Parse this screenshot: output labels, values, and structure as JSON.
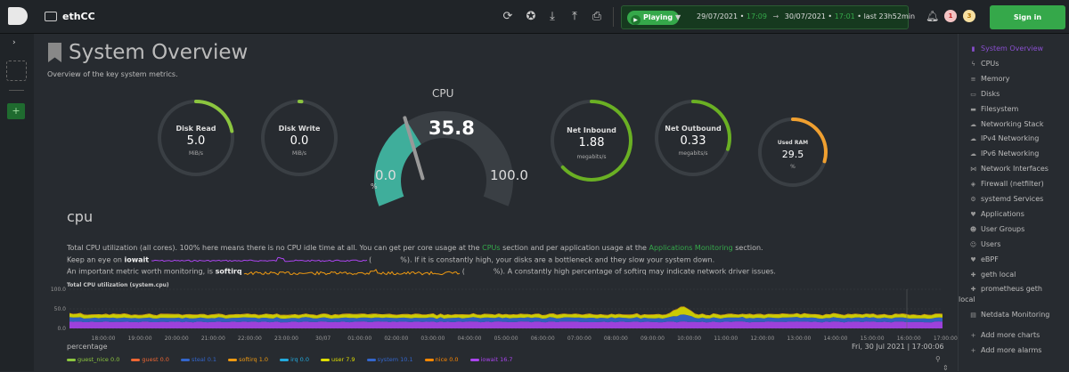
{
  "topbar": {
    "space_name": "ethCC",
    "playing_label": "Playing",
    "from_date": "29/07/2021 • ",
    "from_time": "17:09",
    "to_date": "30/07/2021 • ",
    "to_time": "17:01",
    "duration": " • last 23h52min",
    "alarm_count_red": "1",
    "alarm_count_yellow": "3",
    "signin_label": "Sign in"
  },
  "page": {
    "title": "System Overview",
    "subtitle": "Overview of the key system metrics."
  },
  "gauges": [
    {
      "label": "Disk Read",
      "value": "5.0",
      "unit": "MiB/s",
      "fraction": 0.22,
      "color": "#8cc63f"
    },
    {
      "label": "Disk Write",
      "value": "0.0",
      "unit": "MiB/s",
      "fraction": 0.01,
      "color": "#8cc63f"
    },
    {
      "label": "Net Inbound",
      "value": "1.88",
      "unit": "megabits/s",
      "fraction": 0.63,
      "color": "#6ab023"
    },
    {
      "label": "Net Outbound",
      "value": "0.33",
      "unit": "megabits/s",
      "fraction": 0.3,
      "color": "#6ab023"
    },
    {
      "label": "Used RAM",
      "value": "29.5",
      "unit": "%",
      "fraction": 0.295,
      "color": "#f0a030"
    }
  ],
  "cpu_gauge": {
    "title": "CPU",
    "value": "35.8",
    "min": "0.0",
    "max": "100.0",
    "unit": "%",
    "fraction": 0.358,
    "color": "#3fae9b"
  },
  "cpu_section": {
    "title": "cpu",
    "line1_a": "Total CPU utilization (all cores). 100% here means there is no CPU idle time at all. You can get per core usage at the ",
    "line1_link1": "CPUs",
    "line1_b": " section and per application usage at the ",
    "line1_link2": "Applications Monitoring",
    "line1_c": " section.",
    "line2_a": "Keep an eye on ",
    "line2_bold": "iowait",
    "line2_b": "(",
    "line2_c": "%). If it is constantly high, your disks are a bottleneck and they slow your system down.",
    "line3_a": "An important metric worth monitoring, is ",
    "line3_bold": "softirq",
    "line3_b": "(",
    "line3_c": "%). A constantly high percentage of softirq may indicate network driver issues."
  },
  "chart_data": {
    "type": "area",
    "title": "Total CPU utilization (system.cpu)",
    "ylabel": "percentage",
    "ylim": [
      0,
      100
    ],
    "yticks": [
      "100.0",
      "50.0",
      "0.0"
    ],
    "x": [
      "18:00:00",
      "19:00:00",
      "20:00:00",
      "21:00:00",
      "22:00:00",
      "23:00:00",
      "30/07",
      "01:00:00",
      "02:00:00",
      "03:00:00",
      "04:00:00",
      "05:00:00",
      "06:00:00",
      "07:00:00",
      "08:00:00",
      "09:00:00",
      "10:00:00",
      "11:00:00",
      "12:00:00",
      "13:00:00",
      "14:00:00",
      "15:00:00",
      "16:00:00",
      "17:00:00"
    ],
    "timestamp": "Fri, 30 Jul 2021 | 17:00:06",
    "series": [
      {
        "name": "guest_nice",
        "value": "0.0",
        "color": "#8cc63f"
      },
      {
        "name": "guest",
        "value": "0.0",
        "color": "#ee6633"
      },
      {
        "name": "steal",
        "value": "0.1",
        "color": "#3366cc"
      },
      {
        "name": "softirq",
        "value": "1.0",
        "color": "#ee9911"
      },
      {
        "name": "irq",
        "value": "0.0",
        "color": "#22aadd"
      },
      {
        "name": "user",
        "value": "7.9",
        "color": "#dddd00"
      },
      {
        "name": "system",
        "value": "10.1",
        "color": "#3366cc"
      },
      {
        "name": "nice",
        "value": "0.0",
        "color": "#ff8800"
      },
      {
        "name": "iowait",
        "value": "16.7",
        "color": "#aa44ee"
      }
    ]
  },
  "nav": {
    "items": [
      {
        "label": "System Overview",
        "icon": "bookmark-icon",
        "glyph": "▮"
      },
      {
        "label": "CPUs",
        "icon": "bolt-icon",
        "glyph": "ϟ"
      },
      {
        "label": "Memory",
        "icon": "database-icon",
        "glyph": "≡"
      },
      {
        "label": "Disks",
        "icon": "hdd-icon",
        "glyph": "▭"
      },
      {
        "label": "Filesystem",
        "icon": "folder-icon",
        "glyph": "▬"
      },
      {
        "label": "Networking Stack",
        "icon": "cloud-icon",
        "glyph": "☁"
      },
      {
        "label": "IPv4 Networking",
        "icon": "cloud-icon",
        "glyph": "☁"
      },
      {
        "label": "IPv6 Networking",
        "icon": "cloud-icon",
        "glyph": "☁"
      },
      {
        "label": "Network Interfaces",
        "icon": "share-icon",
        "glyph": "⋈"
      },
      {
        "label": "Firewall (netfilter)",
        "icon": "shield-icon",
        "glyph": "◈"
      },
      {
        "label": "systemd Services",
        "icon": "cogs-icon",
        "glyph": "⚙"
      },
      {
        "label": "Applications",
        "icon": "heartbeat-icon",
        "glyph": "♥"
      },
      {
        "label": "User Groups",
        "icon": "users-icon",
        "glyph": "☻"
      },
      {
        "label": "Users",
        "icon": "user-icon",
        "glyph": "☺"
      },
      {
        "label": "eBPF",
        "icon": "heartbeat-icon",
        "glyph": "♥"
      },
      {
        "label": "geth local",
        "icon": "puzzle-icon",
        "glyph": "✚"
      },
      {
        "label": "prometheus geth",
        "label2": "local",
        "icon": "puzzle-icon",
        "glyph": "✚"
      },
      {
        "label": "Netdata Monitoring",
        "icon": "chart-icon",
        "glyph": "▤"
      },
      {
        "label": "Add more charts",
        "icon": "plus-icon",
        "glyph": "+"
      },
      {
        "label": "Add more alarms",
        "icon": "plus-icon",
        "glyph": "+"
      }
    ]
  }
}
